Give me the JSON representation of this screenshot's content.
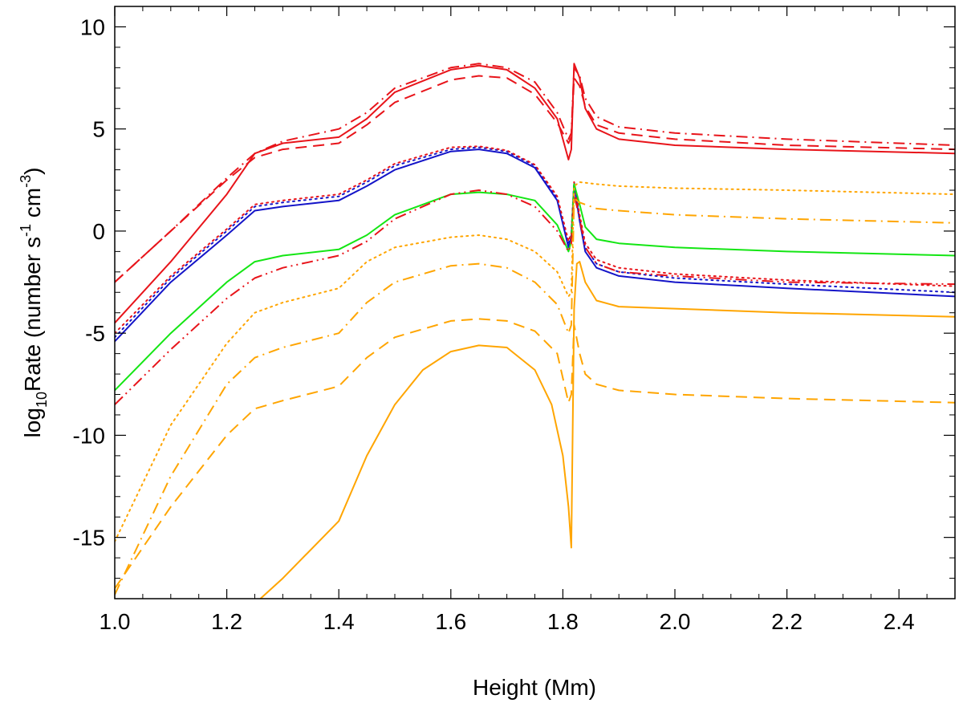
{
  "chart_data": {
    "type": "line",
    "xlabel": "Height (Mm)",
    "ylabel": {
      "prefix": "log",
      "log_base": "10",
      "quantity": "Rate (number s",
      "exp1": "-1",
      "mid": " cm",
      "exp2": "-3",
      "suffix": ")"
    },
    "xlim": [
      1.0,
      2.5
    ],
    "ylim": [
      -18,
      11
    ],
    "x_ticks": [
      1.0,
      1.2,
      1.4,
      1.6,
      1.8,
      2.0,
      2.2,
      2.4
    ],
    "x_tick_labels": [
      "1.0",
      "1.2",
      "1.4",
      "1.6",
      "1.8",
      "2.0",
      "2.2",
      "2.4"
    ],
    "y_ticks": [
      -15,
      -10,
      -5,
      0,
      5,
      10
    ],
    "y_tick_labels": [
      "-15",
      "-10",
      "-5",
      "0",
      "5",
      "10"
    ],
    "grid": false,
    "colors": {
      "red": "#e8141a",
      "blue": "#1414c8",
      "green": "#14e614",
      "orange": "#ffa500"
    },
    "series": [
      {
        "color": "red",
        "dash": "solid",
        "points": [
          [
            1.0,
            -4.5
          ],
          [
            1.1,
            -1.5
          ],
          [
            1.2,
            1.8
          ],
          [
            1.25,
            3.8
          ],
          [
            1.3,
            4.3
          ],
          [
            1.4,
            4.6
          ],
          [
            1.45,
            5.5
          ],
          [
            1.5,
            6.8
          ],
          [
            1.6,
            7.9
          ],
          [
            1.65,
            8.1
          ],
          [
            1.7,
            7.9
          ],
          [
            1.75,
            7.0
          ],
          [
            1.79,
            5.5
          ],
          [
            1.81,
            3.5
          ],
          [
            1.815,
            4.0
          ],
          [
            1.82,
            8.2
          ],
          [
            1.83,
            7.5
          ],
          [
            1.84,
            6.0
          ],
          [
            1.86,
            5.0
          ],
          [
            1.9,
            4.5
          ],
          [
            2.0,
            4.2
          ],
          [
            2.2,
            4.0
          ],
          [
            2.5,
            3.8
          ]
        ]
      },
      {
        "color": "red",
        "dash": "dashdot",
        "points": [
          [
            1.0,
            -2.5
          ],
          [
            1.1,
            0.0
          ],
          [
            1.2,
            2.6
          ],
          [
            1.25,
            3.8
          ],
          [
            1.3,
            4.4
          ],
          [
            1.4,
            5.0
          ],
          [
            1.45,
            5.8
          ],
          [
            1.5,
            7.0
          ],
          [
            1.6,
            8.0
          ],
          [
            1.65,
            8.2
          ],
          [
            1.7,
            8.0
          ],
          [
            1.75,
            7.3
          ],
          [
            1.79,
            5.8
          ],
          [
            1.81,
            4.5
          ],
          [
            1.815,
            4.8
          ],
          [
            1.82,
            8.0
          ],
          [
            1.83,
            7.6
          ],
          [
            1.84,
            6.5
          ],
          [
            1.86,
            5.6
          ],
          [
            1.9,
            5.1
          ],
          [
            2.0,
            4.8
          ],
          [
            2.2,
            4.5
          ],
          [
            2.5,
            4.2
          ]
        ]
      },
      {
        "color": "red",
        "dash": "dashed",
        "points": [
          [
            1.0,
            -2.5
          ],
          [
            1.1,
            0.0
          ],
          [
            1.2,
            2.5
          ],
          [
            1.25,
            3.6
          ],
          [
            1.3,
            4.0
          ],
          [
            1.4,
            4.3
          ],
          [
            1.45,
            5.2
          ],
          [
            1.5,
            6.3
          ],
          [
            1.6,
            7.4
          ],
          [
            1.65,
            7.6
          ],
          [
            1.7,
            7.5
          ],
          [
            1.75,
            6.7
          ],
          [
            1.79,
            5.3
          ],
          [
            1.81,
            4.3
          ],
          [
            1.815,
            4.6
          ],
          [
            1.82,
            7.5
          ],
          [
            1.83,
            7.1
          ],
          [
            1.84,
            6.1
          ],
          [
            1.86,
            5.2
          ],
          [
            1.9,
            4.8
          ],
          [
            2.0,
            4.5
          ],
          [
            2.2,
            4.2
          ],
          [
            2.5,
            4.0
          ]
        ]
      },
      {
        "color": "blue",
        "dash": "solid",
        "points": [
          [
            1.0,
            -5.4
          ],
          [
            1.1,
            -2.5
          ],
          [
            1.2,
            -0.2
          ],
          [
            1.25,
            1.0
          ],
          [
            1.3,
            1.2
          ],
          [
            1.4,
            1.5
          ],
          [
            1.45,
            2.2
          ],
          [
            1.5,
            3.0
          ],
          [
            1.6,
            3.9
          ],
          [
            1.65,
            4.0
          ],
          [
            1.7,
            3.8
          ],
          [
            1.75,
            3.1
          ],
          [
            1.79,
            1.5
          ],
          [
            1.81,
            -0.8
          ],
          [
            1.815,
            -0.3
          ],
          [
            1.82,
            2.3
          ],
          [
            1.83,
            0.5
          ],
          [
            1.84,
            -1.0
          ],
          [
            1.86,
            -1.8
          ],
          [
            1.9,
            -2.2
          ],
          [
            2.0,
            -2.5
          ],
          [
            2.2,
            -2.8
          ],
          [
            2.5,
            -3.2
          ]
        ]
      },
      {
        "color": "blue",
        "dash": "dotted",
        "points": [
          [
            1.0,
            -5.2
          ],
          [
            1.1,
            -2.3
          ],
          [
            1.2,
            0.0
          ],
          [
            1.25,
            1.2
          ],
          [
            1.3,
            1.4
          ],
          [
            1.4,
            1.7
          ],
          [
            1.45,
            2.4
          ],
          [
            1.5,
            3.2
          ],
          [
            1.6,
            4.0
          ],
          [
            1.65,
            4.1
          ],
          [
            1.7,
            3.9
          ],
          [
            1.75,
            3.2
          ],
          [
            1.79,
            1.6
          ],
          [
            1.81,
            -0.6
          ],
          [
            1.815,
            -0.2
          ],
          [
            1.82,
            2.4
          ],
          [
            1.83,
            0.6
          ],
          [
            1.84,
            -0.8
          ],
          [
            1.86,
            -1.6
          ],
          [
            1.9,
            -2.0
          ],
          [
            2.0,
            -2.3
          ],
          [
            2.2,
            -2.6
          ],
          [
            2.5,
            -3.0
          ]
        ]
      },
      {
        "color": "red",
        "dash": "dotted",
        "points": [
          [
            1.0,
            -5.0
          ],
          [
            1.1,
            -2.2
          ],
          [
            1.2,
            0.1
          ],
          [
            1.25,
            1.3
          ],
          [
            1.3,
            1.5
          ],
          [
            1.4,
            1.8
          ],
          [
            1.45,
            2.5
          ],
          [
            1.5,
            3.3
          ],
          [
            1.6,
            4.1
          ],
          [
            1.65,
            4.15
          ],
          [
            1.7,
            3.95
          ],
          [
            1.75,
            3.25
          ],
          [
            1.79,
            1.7
          ],
          [
            1.81,
            -0.5
          ],
          [
            1.815,
            -0.1
          ],
          [
            1.82,
            2.4
          ],
          [
            1.83,
            0.8
          ],
          [
            1.84,
            -0.6
          ],
          [
            1.86,
            -1.4
          ],
          [
            1.9,
            -1.8
          ],
          [
            2.0,
            -2.1
          ],
          [
            2.2,
            -2.4
          ],
          [
            2.5,
            -2.7
          ]
        ]
      },
      {
        "color": "green",
        "dash": "solid",
        "points": [
          [
            1.0,
            -7.8
          ],
          [
            1.1,
            -5.0
          ],
          [
            1.2,
            -2.5
          ],
          [
            1.25,
            -1.5
          ],
          [
            1.3,
            -1.2
          ],
          [
            1.4,
            -0.9
          ],
          [
            1.45,
            -0.2
          ],
          [
            1.5,
            0.8
          ],
          [
            1.6,
            1.8
          ],
          [
            1.65,
            1.9
          ],
          [
            1.7,
            1.8
          ],
          [
            1.75,
            1.5
          ],
          [
            1.79,
            0.3
          ],
          [
            1.81,
            -1.0
          ],
          [
            1.815,
            -0.5
          ],
          [
            1.82,
            2.3
          ],
          [
            1.83,
            1.3
          ],
          [
            1.84,
            0.2
          ],
          [
            1.86,
            -0.4
          ],
          [
            1.9,
            -0.6
          ],
          [
            2.0,
            -0.8
          ],
          [
            2.2,
            -1.0
          ],
          [
            2.5,
            -1.2
          ]
        ]
      },
      {
        "color": "red",
        "dash": "dashdotdot",
        "points": [
          [
            1.0,
            -8.5
          ],
          [
            1.1,
            -5.8
          ],
          [
            1.2,
            -3.3
          ],
          [
            1.25,
            -2.3
          ],
          [
            1.3,
            -1.8
          ],
          [
            1.4,
            -1.2
          ],
          [
            1.45,
            -0.5
          ],
          [
            1.5,
            0.6
          ],
          [
            1.6,
            1.8
          ],
          [
            1.65,
            2.0
          ],
          [
            1.7,
            1.8
          ],
          [
            1.75,
            1.2
          ],
          [
            1.79,
            0.0
          ],
          [
            1.81,
            -1.0
          ],
          [
            1.815,
            -0.6
          ],
          [
            1.82,
            1.8
          ],
          [
            1.83,
            0.6
          ],
          [
            1.84,
            -0.8
          ],
          [
            1.86,
            -1.6
          ],
          [
            1.9,
            -2.0
          ],
          [
            2.0,
            -2.2
          ],
          [
            2.2,
            -2.5
          ],
          [
            2.5,
            -2.6
          ]
        ]
      },
      {
        "color": "orange",
        "dotted": true,
        "dash": "dotted",
        "points": [
          [
            1.0,
            -15.2
          ],
          [
            1.1,
            -9.5
          ],
          [
            1.2,
            -5.5
          ],
          [
            1.25,
            -4.0
          ],
          [
            1.3,
            -3.5
          ],
          [
            1.4,
            -2.8
          ],
          [
            1.45,
            -1.5
          ],
          [
            1.5,
            -0.8
          ],
          [
            1.6,
            -0.3
          ],
          [
            1.65,
            -0.2
          ],
          [
            1.7,
            -0.4
          ],
          [
            1.75,
            -1.0
          ],
          [
            1.79,
            -2.0
          ],
          [
            1.81,
            -3.2
          ],
          [
            1.815,
            -3.0
          ],
          [
            1.82,
            2.2
          ],
          [
            1.83,
            2.4
          ],
          [
            1.86,
            2.3
          ],
          [
            1.9,
            2.2
          ],
          [
            2.0,
            2.1
          ],
          [
            2.2,
            2.0
          ],
          [
            2.5,
            1.8
          ]
        ]
      },
      {
        "color": "orange",
        "dash": "dashdot",
        "points": [
          [
            1.0,
            -17.8
          ],
          [
            1.1,
            -12.0
          ],
          [
            1.2,
            -7.5
          ],
          [
            1.25,
            -6.2
          ],
          [
            1.3,
            -5.7
          ],
          [
            1.4,
            -5.0
          ],
          [
            1.45,
            -3.5
          ],
          [
            1.5,
            -2.5
          ],
          [
            1.6,
            -1.7
          ],
          [
            1.65,
            -1.6
          ],
          [
            1.7,
            -1.8
          ],
          [
            1.75,
            -2.5
          ],
          [
            1.79,
            -3.6
          ],
          [
            1.81,
            -5.0
          ],
          [
            1.815,
            -4.6
          ],
          [
            1.82,
            1.6
          ],
          [
            1.83,
            1.4
          ],
          [
            1.86,
            1.1
          ],
          [
            1.9,
            1.0
          ],
          [
            2.0,
            0.8
          ],
          [
            2.2,
            0.6
          ],
          [
            2.5,
            0.4
          ]
        ]
      },
      {
        "color": "orange",
        "dash": "dashed",
        "points": [
          [
            1.0,
            -17.5
          ],
          [
            1.1,
            -13.5
          ],
          [
            1.2,
            -10.0
          ],
          [
            1.25,
            -8.7
          ],
          [
            1.3,
            -8.3
          ],
          [
            1.4,
            -7.6
          ],
          [
            1.45,
            -6.2
          ],
          [
            1.5,
            -5.2
          ],
          [
            1.6,
            -4.4
          ],
          [
            1.65,
            -4.3
          ],
          [
            1.7,
            -4.4
          ],
          [
            1.75,
            -4.9
          ],
          [
            1.79,
            -6.0
          ],
          [
            1.81,
            -8.4
          ],
          [
            1.815,
            -8.0
          ],
          [
            1.82,
            -4.6
          ],
          [
            1.83,
            -6.0
          ],
          [
            1.84,
            -7.0
          ],
          [
            1.86,
            -7.5
          ],
          [
            1.9,
            -7.8
          ],
          [
            2.0,
            -8.0
          ],
          [
            2.2,
            -8.2
          ],
          [
            2.5,
            -8.4
          ]
        ]
      },
      {
        "color": "orange",
        "dash": "solid",
        "points": [
          [
            1.26,
            -18
          ],
          [
            1.3,
            -17.0
          ],
          [
            1.4,
            -14.2
          ],
          [
            1.45,
            -11.0
          ],
          [
            1.5,
            -8.5
          ],
          [
            1.55,
            -6.8
          ],
          [
            1.6,
            -5.9
          ],
          [
            1.65,
            -5.6
          ],
          [
            1.7,
            -5.7
          ],
          [
            1.75,
            -6.8
          ],
          [
            1.78,
            -8.5
          ],
          [
            1.8,
            -11.0
          ],
          [
            1.81,
            -13.5
          ],
          [
            1.815,
            -15.5
          ],
          [
            1.82,
            -3.8
          ],
          [
            1.825,
            -1.6
          ],
          [
            1.83,
            -1.5
          ],
          [
            1.84,
            -2.5
          ],
          [
            1.86,
            -3.4
          ],
          [
            1.9,
            -3.7
          ],
          [
            2.0,
            -3.8
          ],
          [
            2.2,
            -4.0
          ],
          [
            2.5,
            -4.2
          ]
        ]
      }
    ]
  }
}
